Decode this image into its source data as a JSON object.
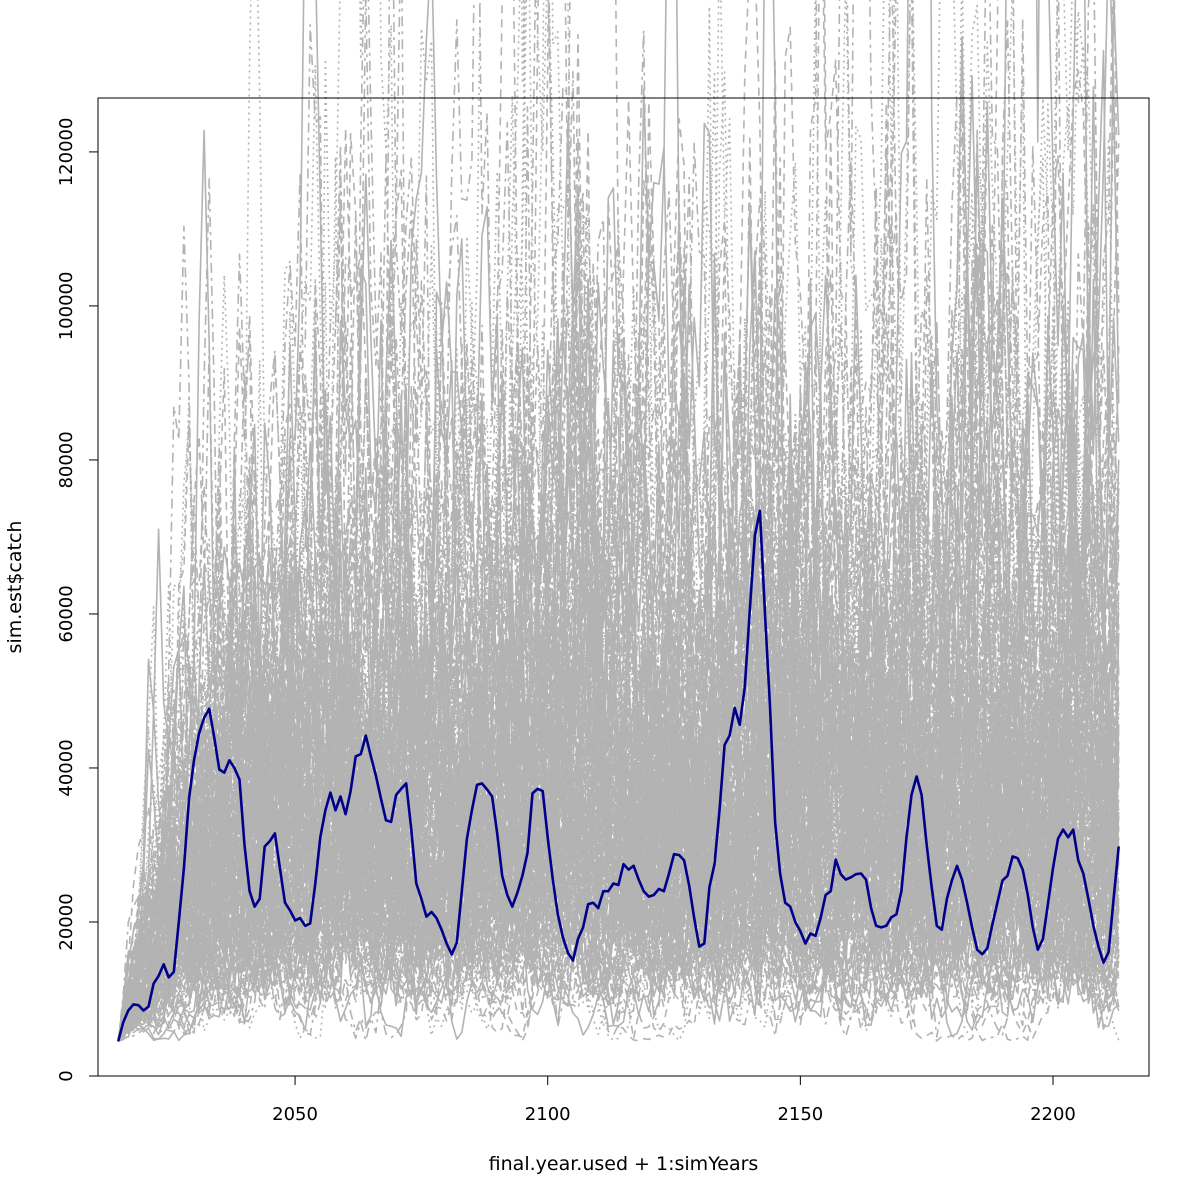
{
  "chart_data": {
    "type": "line",
    "title": "",
    "xlabel": "final.year.used + 1:simYears",
    "ylabel": "sim.est$catch",
    "xlim": [
      2011,
      2219
    ],
    "ylim": [
      0,
      127000
    ],
    "x_start": 2015,
    "x_end": 2213,
    "x_ticks": [
      2050,
      2100,
      2150,
      2200
    ],
    "x_tick_labels": [
      "2050",
      "2100",
      "2150",
      "2200"
    ],
    "y_ticks": [
      0,
      20000,
      40000,
      60000,
      80000,
      100000,
      120000
    ],
    "y_tick_labels": [
      "0",
      "20000",
      "40000",
      "60000",
      "80000",
      "100000",
      "120000"
    ],
    "grid": false,
    "legend": "none",
    "background_series_color": "#b3b3b3",
    "highlight_series_color": "#00008b",
    "background_series_count": 160,
    "highlight_series": {
      "name": "",
      "points": [
        [
          2015,
          4500
        ],
        [
          2016,
          7000
        ],
        [
          2017,
          8500
        ],
        [
          2018,
          9300
        ],
        [
          2019,
          9200
        ],
        [
          2020,
          8500
        ],
        [
          2021,
          9000
        ],
        [
          2022,
          12000
        ],
        [
          2023,
          13000
        ],
        [
          2024,
          14500
        ],
        [
          2025,
          12800
        ],
        [
          2026,
          13500
        ],
        [
          2027,
          20000
        ],
        [
          2028,
          27000
        ],
        [
          2029,
          36000
        ],
        [
          2030,
          41000
        ],
        [
          2031,
          44500
        ],
        [
          2032,
          46500
        ],
        [
          2033,
          47700
        ],
        [
          2034,
          44000
        ],
        [
          2035,
          39800
        ],
        [
          2036,
          39400
        ],
        [
          2037,
          41000
        ],
        [
          2038,
          40000
        ],
        [
          2039,
          38500
        ],
        [
          2040,
          30000
        ],
        [
          2041,
          24000
        ],
        [
          2042,
          22000
        ],
        [
          2043,
          23000
        ],
        [
          2044,
          29800
        ],
        [
          2045,
          30500
        ],
        [
          2046,
          31500
        ],
        [
          2047,
          27000
        ],
        [
          2048,
          22500
        ],
        [
          2049,
          21500
        ],
        [
          2050,
          20200
        ],
        [
          2051,
          20500
        ],
        [
          2052,
          19500
        ],
        [
          2053,
          19800
        ],
        [
          2054,
          25000
        ],
        [
          2055,
          31000
        ],
        [
          2056,
          34500
        ],
        [
          2057,
          36800
        ],
        [
          2058,
          34500
        ],
        [
          2059,
          36300
        ],
        [
          2060,
          34000
        ],
        [
          2061,
          37000
        ],
        [
          2062,
          41500
        ],
        [
          2063,
          41800
        ],
        [
          2064,
          44200
        ],
        [
          2065,
          41500
        ],
        [
          2066,
          39000
        ],
        [
          2067,
          36000
        ],
        [
          2068,
          33200
        ],
        [
          2069,
          33000
        ],
        [
          2070,
          36500
        ],
        [
          2071,
          37300
        ],
        [
          2072,
          38000
        ],
        [
          2073,
          32000
        ],
        [
          2074,
          25000
        ],
        [
          2075,
          23000
        ],
        [
          2076,
          20700
        ],
        [
          2077,
          21300
        ],
        [
          2078,
          20500
        ],
        [
          2079,
          19000
        ],
        [
          2080,
          17200
        ],
        [
          2081,
          15800
        ],
        [
          2082,
          17300
        ],
        [
          2083,
          24000
        ],
        [
          2084,
          30800
        ],
        [
          2085,
          34500
        ],
        [
          2086,
          37800
        ],
        [
          2087,
          38000
        ],
        [
          2088,
          37200
        ],
        [
          2089,
          36300
        ],
        [
          2090,
          31500
        ],
        [
          2091,
          26000
        ],
        [
          2092,
          23500
        ],
        [
          2093,
          22000
        ],
        [
          2094,
          23800
        ],
        [
          2095,
          26000
        ],
        [
          2096,
          29000
        ],
        [
          2097,
          36700
        ],
        [
          2098,
          37300
        ],
        [
          2099,
          37000
        ],
        [
          2100,
          31000
        ],
        [
          2101,
          25500
        ],
        [
          2102,
          21000
        ],
        [
          2103,
          18000
        ],
        [
          2104,
          16000
        ],
        [
          2105,
          15000
        ],
        [
          2106,
          17800
        ],
        [
          2107,
          19300
        ],
        [
          2108,
          22300
        ],
        [
          2109,
          22500
        ],
        [
          2110,
          21800
        ],
        [
          2111,
          24000
        ],
        [
          2112,
          24000
        ],
        [
          2113,
          25000
        ],
        [
          2114,
          24800
        ],
        [
          2115,
          27500
        ],
        [
          2116,
          26800
        ],
        [
          2117,
          27300
        ],
        [
          2118,
          25500
        ],
        [
          2119,
          24000
        ],
        [
          2120,
          23300
        ],
        [
          2121,
          23500
        ],
        [
          2122,
          24300
        ],
        [
          2123,
          24000
        ],
        [
          2124,
          26300
        ],
        [
          2125,
          28800
        ],
        [
          2126,
          28700
        ],
        [
          2127,
          28000
        ],
        [
          2128,
          24700
        ],
        [
          2129,
          20500
        ],
        [
          2130,
          16800
        ],
        [
          2131,
          17200
        ],
        [
          2132,
          24500
        ],
        [
          2133,
          27500
        ],
        [
          2134,
          34500
        ],
        [
          2135,
          43000
        ],
        [
          2136,
          44200
        ],
        [
          2137,
          47800
        ],
        [
          2138,
          45600
        ],
        [
          2139,
          50500
        ],
        [
          2140,
          60500
        ],
        [
          2141,
          70200
        ],
        [
          2142,
          73400
        ],
        [
          2143,
          60000
        ],
        [
          2144,
          48000
        ],
        [
          2145,
          33000
        ],
        [
          2146,
          26300
        ],
        [
          2147,
          22500
        ],
        [
          2148,
          22000
        ],
        [
          2149,
          20000
        ],
        [
          2150,
          18800
        ],
        [
          2151,
          17200
        ],
        [
          2152,
          18500
        ],
        [
          2153,
          18200
        ],
        [
          2154,
          20500
        ],
        [
          2155,
          23500
        ],
        [
          2156,
          24000
        ],
        [
          2157,
          28100
        ],
        [
          2158,
          26200
        ],
        [
          2159,
          25500
        ],
        [
          2160,
          25800
        ],
        [
          2161,
          26200
        ],
        [
          2162,
          26300
        ],
        [
          2163,
          25500
        ],
        [
          2164,
          21800
        ],
        [
          2165,
          19500
        ],
        [
          2166,
          19300
        ],
        [
          2167,
          19500
        ],
        [
          2168,
          20600
        ],
        [
          2169,
          21000
        ],
        [
          2170,
          24000
        ],
        [
          2171,
          31000
        ],
        [
          2172,
          36500
        ],
        [
          2173,
          38900
        ],
        [
          2174,
          36500
        ],
        [
          2175,
          30000
        ],
        [
          2176,
          24500
        ],
        [
          2177,
          19500
        ],
        [
          2178,
          19000
        ],
        [
          2179,
          23000
        ],
        [
          2180,
          25400
        ],
        [
          2181,
          27300
        ],
        [
          2182,
          25500
        ],
        [
          2183,
          22500
        ],
        [
          2184,
          19300
        ],
        [
          2185,
          16400
        ],
        [
          2186,
          15800
        ],
        [
          2187,
          16600
        ],
        [
          2188,
          19700
        ],
        [
          2189,
          22500
        ],
        [
          2190,
          25400
        ],
        [
          2191,
          26000
        ],
        [
          2192,
          28500
        ],
        [
          2193,
          28300
        ],
        [
          2194,
          26800
        ],
        [
          2195,
          23600
        ],
        [
          2196,
          19300
        ],
        [
          2197,
          16400
        ],
        [
          2198,
          17800
        ],
        [
          2199,
          22300
        ],
        [
          2200,
          27000
        ],
        [
          2201,
          30800
        ],
        [
          2202,
          32000
        ],
        [
          2203,
          31000
        ],
        [
          2204,
          32000
        ],
        [
          2205,
          28000
        ],
        [
          2206,
          26300
        ],
        [
          2207,
          23000
        ],
        [
          2208,
          19500
        ],
        [
          2209,
          16800
        ],
        [
          2210,
          14700
        ],
        [
          2211,
          16100
        ],
        [
          2212,
          23000
        ],
        [
          2213,
          29800
        ]
      ]
    },
    "background_peaks": [
      [
        2032,
        122800
      ],
      [
        2033,
        116500
      ],
      [
        2036,
        104000
      ],
      [
        2046,
        93500
      ],
      [
        2049,
        95000
      ],
      [
        2060,
        98000
      ],
      [
        2069,
        102600
      ],
      [
        2087,
        86800
      ],
      [
        2091,
        90300
      ],
      [
        2106,
        110000
      ],
      [
        2121,
        106500
      ],
      [
        2126,
        110500
      ],
      [
        2140,
        112500
      ],
      [
        2160,
        118700
      ],
      [
        2159,
        93500
      ],
      [
        2167,
        99200
      ],
      [
        2183,
        107300
      ],
      [
        2188,
        102600
      ],
      [
        2200,
        100000
      ],
      [
        2213,
        92000
      ]
    ]
  }
}
